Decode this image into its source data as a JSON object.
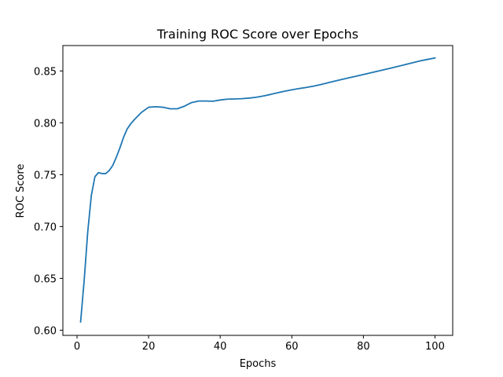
{
  "chart_data": {
    "type": "line",
    "title": "Training ROC Score over Epochs",
    "xlabel": "Epochs",
    "ylabel": "ROC Score",
    "xlim": [
      -3.95,
      104.95
    ],
    "ylim": [
      0.595,
      0.8745
    ],
    "grid": false,
    "xticks": [
      0,
      20,
      40,
      60,
      80,
      100
    ],
    "yticks": [
      0.6,
      0.65,
      0.7,
      0.75,
      0.8,
      0.85
    ],
    "xtick_labels": [
      "0",
      "20",
      "40",
      "60",
      "80",
      "100"
    ],
    "ytick_labels": [
      "0.60",
      "0.65",
      "0.70",
      "0.75",
      "0.80",
      "0.85"
    ],
    "series": [
      {
        "name": "",
        "color": "#1f77b4",
        "x": [
          1,
          2,
          3,
          4,
          5,
          6,
          7,
          8,
          9,
          10,
          11,
          12,
          13,
          14,
          15,
          16,
          18,
          20,
          22,
          24,
          26,
          28,
          30,
          32,
          34,
          36,
          38,
          40,
          42,
          44,
          46,
          48,
          50,
          52,
          54,
          56,
          58,
          60,
          62,
          64,
          66,
          68,
          70,
          72,
          74,
          76,
          78,
          80,
          82,
          84,
          86,
          88,
          90,
          92,
          94,
          96,
          98,
          100
        ],
        "y": [
          0.608,
          0.648,
          0.695,
          0.73,
          0.748,
          0.752,
          0.751,
          0.751,
          0.754,
          0.759,
          0.767,
          0.776,
          0.786,
          0.794,
          0.799,
          0.803,
          0.81,
          0.815,
          0.8155,
          0.815,
          0.8135,
          0.8135,
          0.816,
          0.8195,
          0.821,
          0.821,
          0.8208,
          0.822,
          0.8228,
          0.823,
          0.8233,
          0.8238,
          0.8246,
          0.8258,
          0.8273,
          0.829,
          0.8305,
          0.8318,
          0.833,
          0.8341,
          0.8353,
          0.8368,
          0.8385,
          0.8402,
          0.8418,
          0.8434,
          0.845,
          0.8466,
          0.8482,
          0.8498,
          0.8514,
          0.853,
          0.8547,
          0.8564,
          0.8581,
          0.8598,
          0.8612,
          0.8625
        ]
      }
    ]
  }
}
